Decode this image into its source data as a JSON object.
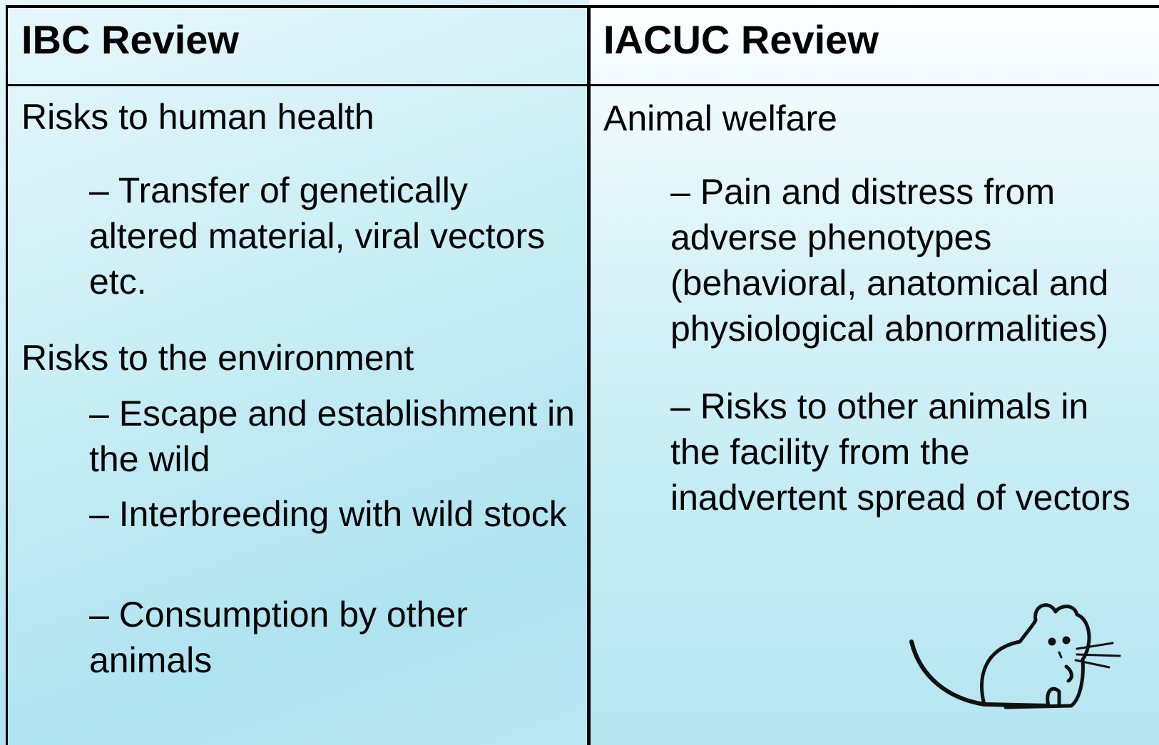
{
  "table": {
    "columns": [
      {
        "header": "IBC Review",
        "items": [
          {
            "text": "Risks to human health",
            "subitems": [
              "– Transfer of genetically altered material, viral vectors etc."
            ]
          },
          {
            "text": "Risks to the environment",
            "subitems": [
              "– Escape and establishment in the wild",
              "– Interbreeding with wild stock",
              "– Consumption by other animals"
            ]
          }
        ]
      },
      {
        "header": "IACUC Review",
        "items": [
          {
            "text": "Animal welfare",
            "subitems": [
              "– Pain and distress from adverse phenotypes (behavioral, anatomical and physiological abnormalities)",
              "– Risks to other animals in the facility from the inadvertent spread of vectors"
            ]
          }
        ]
      }
    ]
  }
}
